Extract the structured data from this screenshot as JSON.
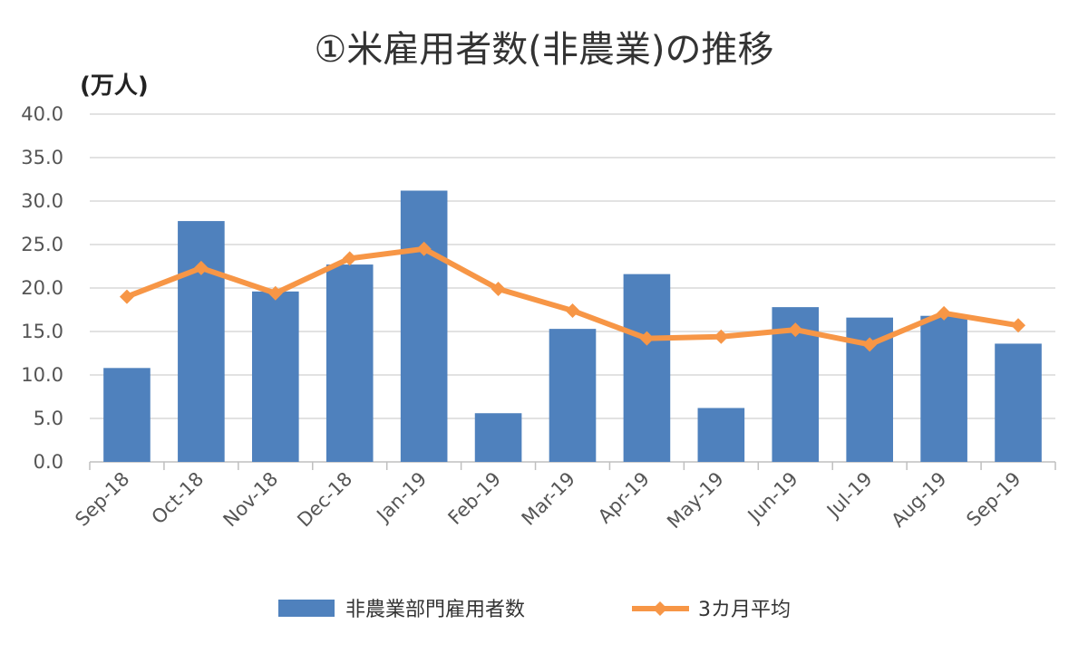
{
  "chart_data": {
    "type": "bar",
    "title": "①米雇用者数(非農業)の推移",
    "unit_label": "(万人)",
    "categories": [
      "Sep-18",
      "Oct-18",
      "Nov-18",
      "Dec-18",
      "Jan-19",
      "Feb-19",
      "Mar-19",
      "Apr-19",
      "May-19",
      "Jun-19",
      "Jul-19",
      "Aug-19",
      "Sep-19"
    ],
    "yticks": [
      "0.0",
      "5.0",
      "10.0",
      "15.0",
      "20.0",
      "25.0",
      "30.0",
      "35.0",
      "40.0"
    ],
    "ylim": [
      0,
      40
    ],
    "grid": true,
    "legend_position": "bottom",
    "series": [
      {
        "name": "非農業部門雇用者数",
        "type": "bar",
        "color": "#4f81bd",
        "values": [
          10.8,
          27.7,
          19.6,
          22.7,
          31.2,
          5.6,
          15.3,
          21.6,
          6.2,
          17.8,
          16.6,
          16.8,
          13.6
        ]
      },
      {
        "name": "3カ月平均",
        "type": "line",
        "marker": "diamond",
        "color": "#f79646",
        "values": [
          19.0,
          22.3,
          19.4,
          23.4,
          24.5,
          19.9,
          17.4,
          14.2,
          14.4,
          15.2,
          13.5,
          17.1,
          15.7
        ]
      }
    ]
  }
}
